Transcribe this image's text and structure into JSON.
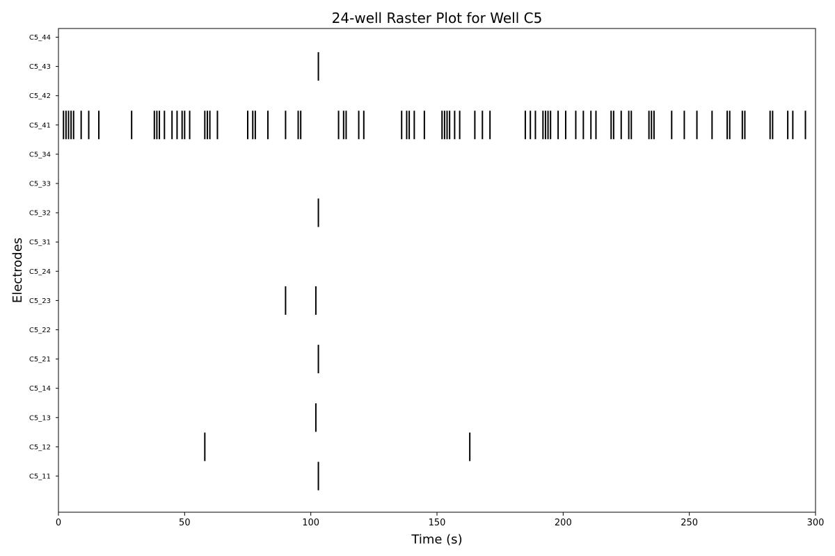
{
  "chart_data": {
    "type": "scatter",
    "subtype": "raster",
    "title": "24-well Raster Plot for Well C5",
    "xlabel": "Time (s)",
    "ylabel": "Electrodes",
    "xlim": [
      0,
      300
    ],
    "xticks": [
      0,
      50,
      100,
      150,
      200,
      250,
      300
    ],
    "grid": false,
    "legend": "none",
    "spike_color": "#000000",
    "electrodes": [
      {
        "name": "C5_11",
        "spikes": [
          103
        ]
      },
      {
        "name": "C5_12",
        "spikes": [
          58,
          163
        ]
      },
      {
        "name": "C5_13",
        "spikes": [
          102
        ]
      },
      {
        "name": "C5_14",
        "spikes": []
      },
      {
        "name": "C5_21",
        "spikes": [
          103
        ]
      },
      {
        "name": "C5_22",
        "spikes": []
      },
      {
        "name": "C5_23",
        "spikes": [
          90,
          102
        ]
      },
      {
        "name": "C5_24",
        "spikes": []
      },
      {
        "name": "C5_31",
        "spikes": []
      },
      {
        "name": "C5_32",
        "spikes": [
          103
        ]
      },
      {
        "name": "C5_33",
        "spikes": []
      },
      {
        "name": "C5_34",
        "spikes": []
      },
      {
        "name": "C5_41",
        "spikes": [
          2,
          3,
          4,
          5,
          6,
          9,
          12,
          16,
          29,
          38,
          39,
          40,
          42,
          45,
          47,
          49,
          50,
          52,
          58,
          59,
          60,
          63,
          75,
          77,
          78,
          83,
          90,
          95,
          96,
          111,
          113,
          114,
          119,
          121,
          136,
          138,
          139,
          141,
          145,
          152,
          153,
          154,
          155,
          157,
          159,
          165,
          168,
          171,
          185,
          187,
          189,
          192,
          193,
          194,
          195,
          198,
          201,
          205,
          208,
          211,
          213,
          219,
          220,
          223,
          226,
          227,
          234,
          235,
          236,
          243,
          248,
          253,
          259,
          265,
          266,
          271,
          272,
          282,
          283,
          289,
          291,
          296
        ]
      },
      {
        "name": "C5_42",
        "spikes": []
      },
      {
        "name": "C5_43",
        "spikes": [
          103
        ]
      },
      {
        "name": "C5_44",
        "spikes": []
      }
    ]
  }
}
